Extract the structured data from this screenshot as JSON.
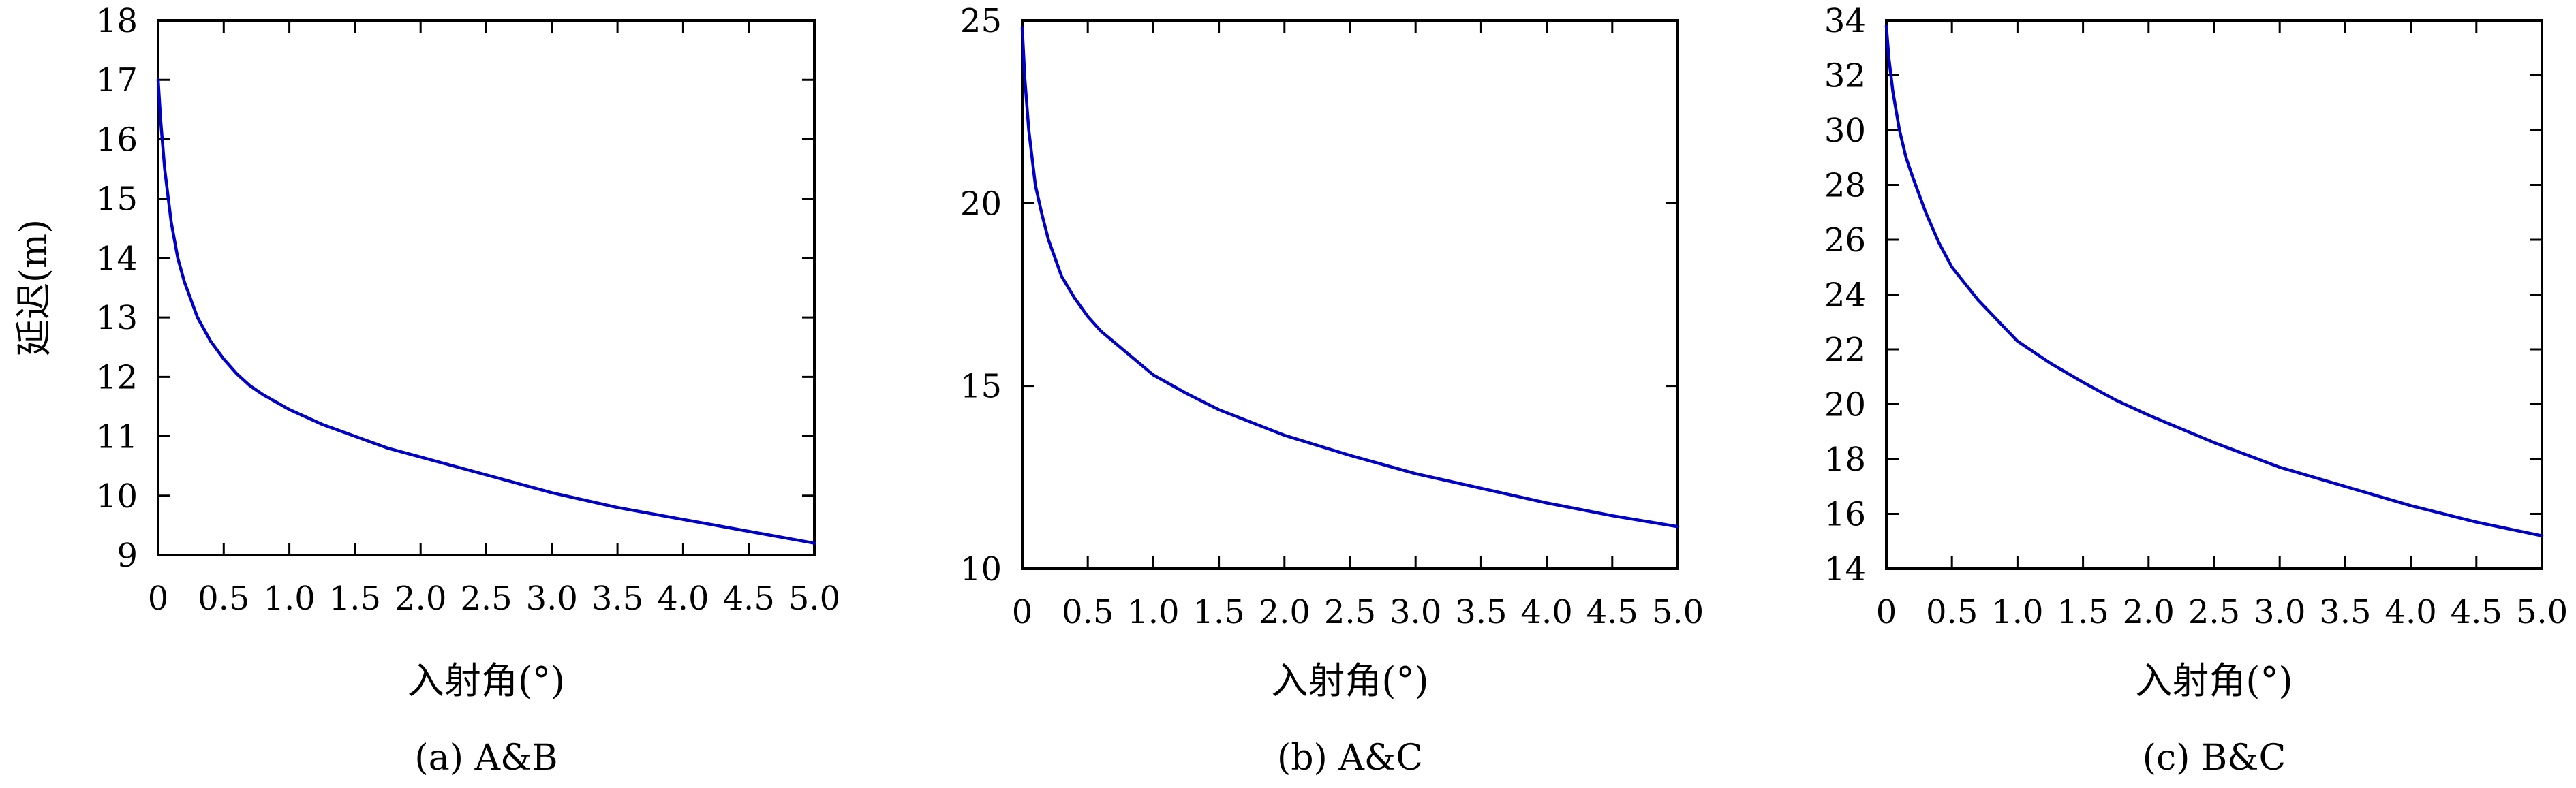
{
  "colors": {
    "series": "#0000cc",
    "axis": "#000000",
    "background": "#ffffff"
  },
  "chart_data": [
    {
      "type": "line",
      "caption": "(a) A&B",
      "xlabel": "入射角(°)",
      "ylabel": "延迟(m)",
      "xlim": [
        0,
        5
      ],
      "ylim": [
        9,
        18
      ],
      "xticks": [
        "0",
        "0.5",
        "1.0",
        "1.5",
        "2.0",
        "2.5",
        "3.0",
        "3.5",
        "4.0",
        "4.5",
        "5.0"
      ],
      "yticks": [
        "9",
        "10",
        "11",
        "12",
        "13",
        "14",
        "15",
        "16",
        "17",
        "18"
      ],
      "grid": false,
      "series": [
        {
          "x": [
            0,
            0.02,
            0.05,
            0.1,
            0.15,
            0.2,
            0.3,
            0.4,
            0.5,
            0.6,
            0.7,
            0.8,
            1.0,
            1.25,
            1.5,
            1.75,
            2.0,
            2.5,
            3.0,
            3.5,
            4.0,
            4.5,
            5.0
          ],
          "y": [
            17.0,
            16.3,
            15.5,
            14.6,
            14.0,
            13.6,
            13.0,
            12.6,
            12.3,
            12.05,
            11.85,
            11.7,
            11.45,
            11.2,
            11.0,
            10.8,
            10.65,
            10.35,
            10.05,
            9.8,
            9.6,
            9.4,
            9.2
          ]
        }
      ]
    },
    {
      "type": "line",
      "caption": "(b) A&C",
      "xlabel": "入射角(°)",
      "ylabel": "",
      "xlim": [
        0,
        5
      ],
      "ylim": [
        10,
        25
      ],
      "xticks": [
        "0",
        "0.5",
        "1.0",
        "1.5",
        "2.0",
        "2.5",
        "3.0",
        "3.5",
        "4.0",
        "4.5",
        "5.0"
      ],
      "yticks": [
        "10",
        "15",
        "20",
        "25"
      ],
      "grid": false,
      "series": [
        {
          "x": [
            0,
            0.02,
            0.05,
            0.1,
            0.15,
            0.2,
            0.3,
            0.4,
            0.5,
            0.6,
            0.7,
            0.8,
            1.0,
            1.25,
            1.5,
            1.75,
            2.0,
            2.5,
            3.0,
            3.5,
            4.0,
            4.5,
            5.0
          ],
          "y": [
            24.8,
            23.4,
            22.0,
            20.5,
            19.7,
            19.0,
            18.0,
            17.4,
            16.9,
            16.5,
            16.2,
            15.9,
            15.3,
            14.8,
            14.35,
            14.0,
            13.65,
            13.1,
            12.6,
            12.2,
            11.8,
            11.45,
            11.15
          ]
        }
      ]
    },
    {
      "type": "line",
      "caption": "(c) B&C",
      "xlabel": "入射角(°)",
      "ylabel": "",
      "xlim": [
        0,
        5
      ],
      "ylim": [
        14,
        34
      ],
      "xticks": [
        "0",
        "0.5",
        "1.0",
        "1.5",
        "2.0",
        "2.5",
        "3.0",
        "3.5",
        "4.0",
        "4.5",
        "5.0"
      ],
      "yticks": [
        "14",
        "16",
        "18",
        "20",
        "22",
        "24",
        "26",
        "28",
        "30",
        "32",
        "34"
      ],
      "grid": false,
      "series": [
        {
          "x": [
            0,
            0.02,
            0.05,
            0.1,
            0.15,
            0.2,
            0.3,
            0.4,
            0.5,
            0.6,
            0.7,
            0.8,
            1.0,
            1.25,
            1.5,
            1.75,
            2.0,
            2.5,
            3.0,
            3.5,
            4.0,
            4.5,
            5.0
          ],
          "y": [
            33.8,
            32.6,
            31.4,
            30.0,
            29.0,
            28.3,
            27.0,
            25.9,
            25.0,
            24.4,
            23.8,
            23.3,
            22.3,
            21.5,
            20.8,
            20.15,
            19.6,
            18.6,
            17.7,
            17.0,
            16.3,
            15.7,
            15.2
          ]
        }
      ]
    }
  ]
}
